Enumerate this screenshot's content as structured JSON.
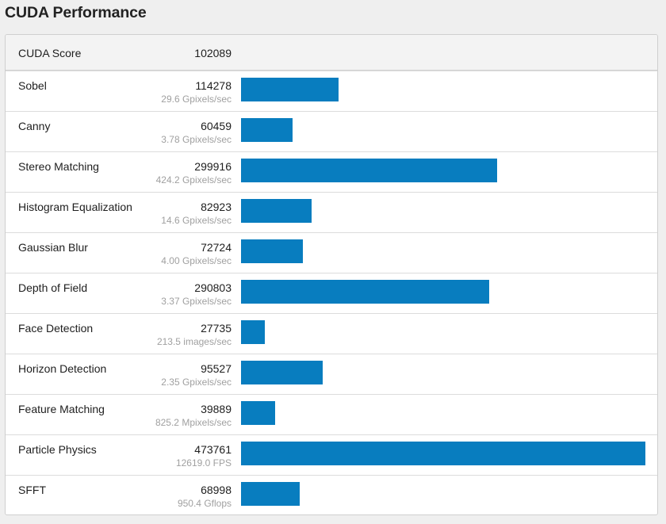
{
  "page": {
    "title": "CUDA Performance"
  },
  "summary": {
    "label": "CUDA Score",
    "score": "102089"
  },
  "colors": {
    "bar": "#087dbf",
    "rate_text": "#a0a0a0",
    "background": "#efefef"
  },
  "rows": [
    {
      "name": "Sobel",
      "score": "114278",
      "rate": "29.6 Gpixels/sec"
    },
    {
      "name": "Canny",
      "score": "60459",
      "rate": "3.78 Gpixels/sec"
    },
    {
      "name": "Stereo Matching",
      "score": "299916",
      "rate": "424.2 Gpixels/sec"
    },
    {
      "name": "Histogram Equalization",
      "score": "82923",
      "rate": "14.6 Gpixels/sec"
    },
    {
      "name": "Gaussian Blur",
      "score": "72724",
      "rate": "4.00 Gpixels/sec"
    },
    {
      "name": "Depth of Field",
      "score": "290803",
      "rate": "3.37 Gpixels/sec"
    },
    {
      "name": "Face Detection",
      "score": "27735",
      "rate": "213.5 images/sec"
    },
    {
      "name": "Horizon Detection",
      "score": "95527",
      "rate": "2.35 Gpixels/sec"
    },
    {
      "name": "Feature Matching",
      "score": "39889",
      "rate": "825.2 Mpixels/sec"
    },
    {
      "name": "Particle Physics",
      "score": "473761",
      "rate": "12619.0 FPS"
    },
    {
      "name": "SFFT",
      "score": "68998",
      "rate": "950.4 Gflops"
    }
  ],
  "chart_data": {
    "type": "bar",
    "orientation": "horizontal",
    "categories": [
      "Sobel",
      "Canny",
      "Stereo Matching",
      "Histogram Equalization",
      "Gaussian Blur",
      "Depth of Field",
      "Face Detection",
      "Horizon Detection",
      "Feature Matching",
      "Particle Physics",
      "SFFT"
    ],
    "values": [
      114278,
      60459,
      299916,
      82923,
      72724,
      290803,
      27735,
      95527,
      39889,
      473761,
      68998
    ],
    "title": "CUDA Performance",
    "xlabel": "",
    "ylabel": ""
  }
}
